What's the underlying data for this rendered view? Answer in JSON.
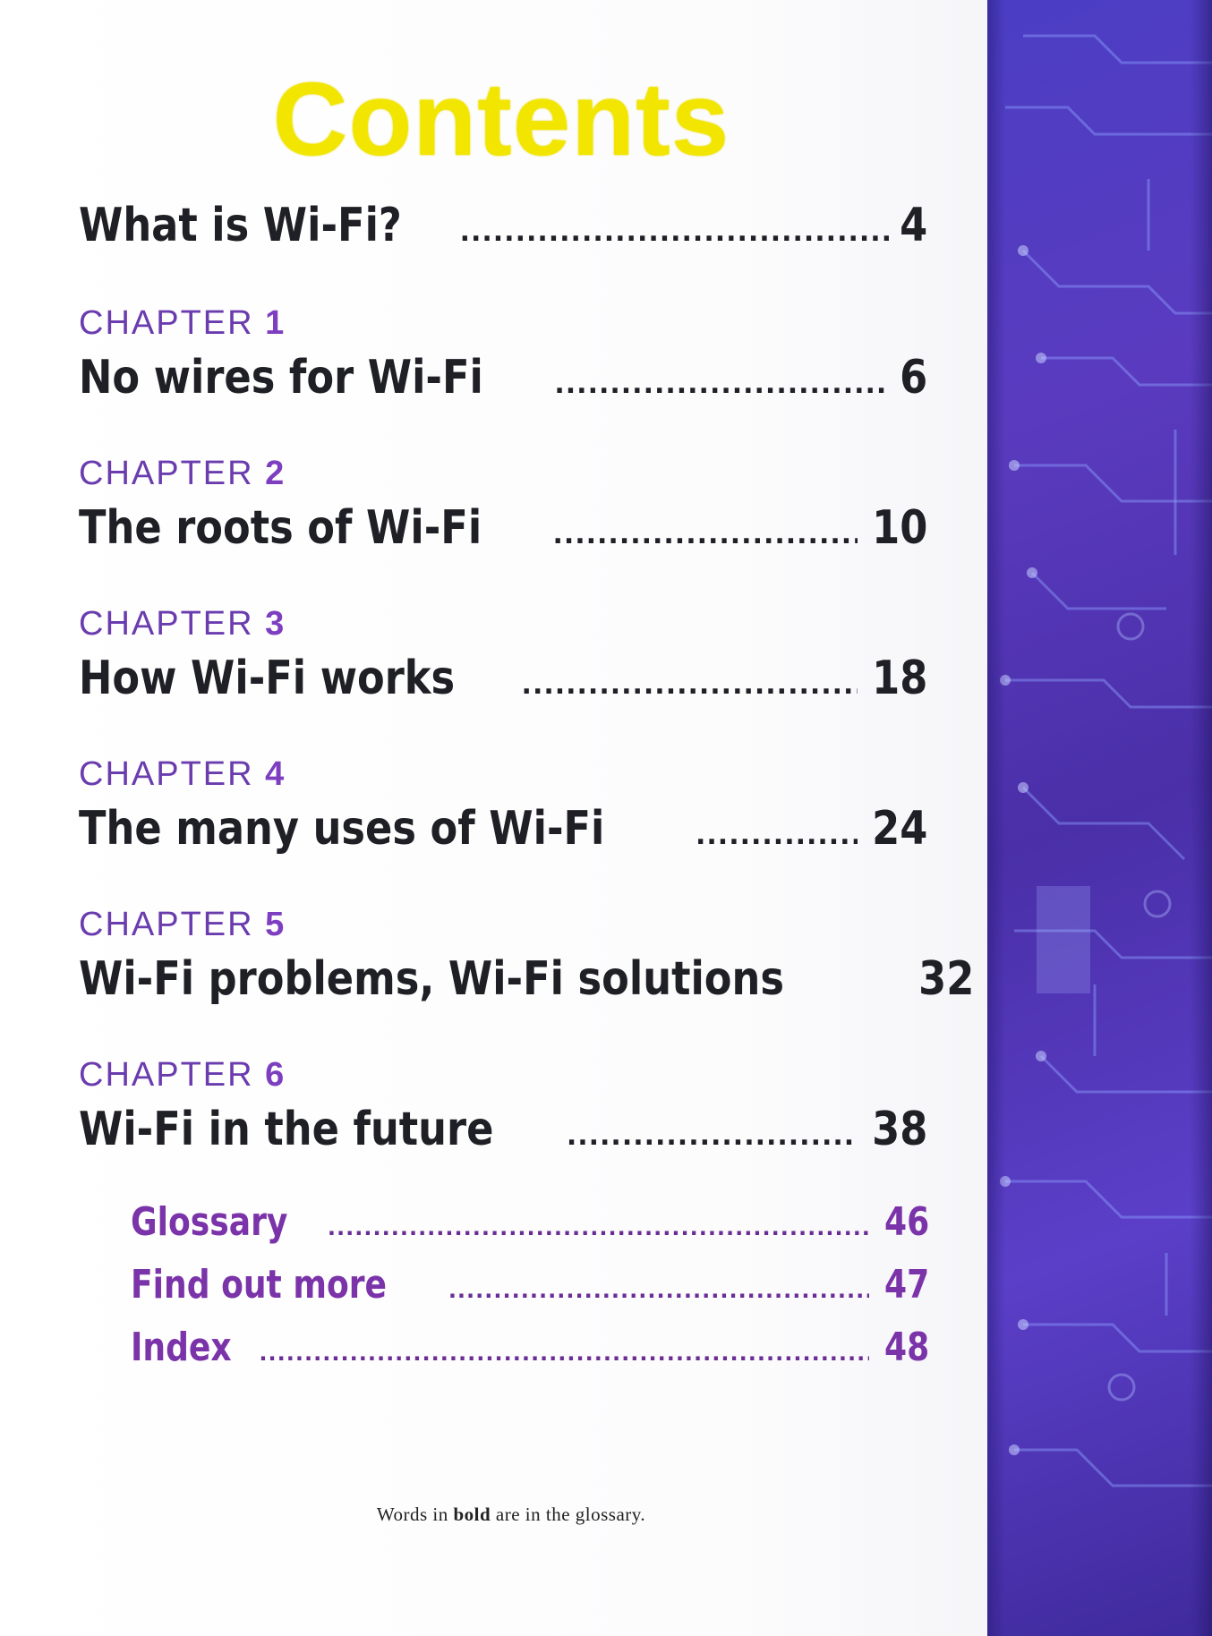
{
  "title": "Contents",
  "chapter_word": "CHAPTER",
  "intro": {
    "label": "What is Wi-Fi?",
    "page": "4"
  },
  "chapters": [
    {
      "number": "1",
      "label": "No wires for Wi-Fi",
      "page": "6"
    },
    {
      "number": "2",
      "label": "The roots of Wi-Fi",
      "page": "10"
    },
    {
      "number": "3",
      "label": "How Wi-Fi works",
      "page": "18"
    },
    {
      "number": "4",
      "label": "The many uses of Wi-Fi",
      "page": "24"
    },
    {
      "number": "5",
      "label": "Wi-Fi problems, Wi-Fi solutions",
      "page": "32"
    },
    {
      "number": "6",
      "label": "Wi-Fi in the future",
      "page": "38"
    }
  ],
  "back_matter": [
    {
      "label": "Glossary",
      "page": "46"
    },
    {
      "label": "Find out more",
      "page": "47"
    },
    {
      "label": "Index",
      "page": "48"
    }
  ],
  "footnote": {
    "before": "Words in ",
    "bold": "bold",
    "after": " are in the glossary."
  },
  "colors": {
    "title": "#f2e600",
    "chapter_label": "#6a3cae",
    "back_matter": "#7a33a8",
    "side_panel": "#4b3ec4"
  }
}
